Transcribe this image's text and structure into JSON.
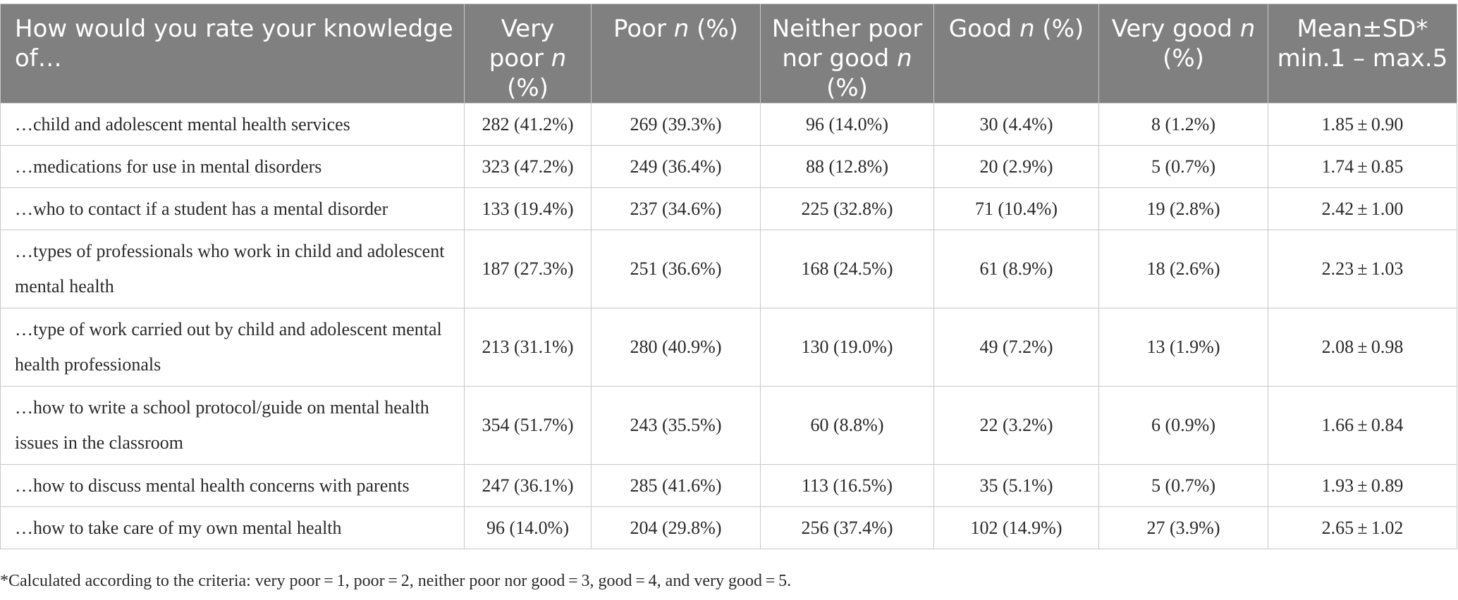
{
  "table": {
    "headers": [
      {
        "pre": "How would you rate your knowledge of…",
        "it": "",
        "post": ""
      },
      {
        "pre": "Very poor ",
        "it": "n",
        "post": " (%)"
      },
      {
        "pre": "Poor ",
        "it": "n",
        "post": " (%)"
      },
      {
        "pre": "Neither poor nor good ",
        "it": "n",
        "post": " (%)"
      },
      {
        "pre": "Good ",
        "it": "n",
        "post": " (%)"
      },
      {
        "pre": "Very good ",
        "it": "n",
        "post": " (%)"
      },
      {
        "pre": "Mean±SD* min.1 – max.5",
        "it": "",
        "post": ""
      }
    ],
    "rows": [
      {
        "item": "…child and adolescent mental health services",
        "very_poor": "282 (41.2%)",
        "poor": "269 (39.3%)",
        "neither": "96 (14.0%)",
        "good": "30 (4.4%)",
        "very_good": "8 (1.2%)",
        "mean_sd": "1.85 ± 0.90"
      },
      {
        "item": "…medications for use in mental disorders",
        "very_poor": "323 (47.2%)",
        "poor": "249 (36.4%)",
        "neither": "88 (12.8%)",
        "good": "20 (2.9%)",
        "very_good": "5 (0.7%)",
        "mean_sd": "1.74 ± 0.85"
      },
      {
        "item": "…who to contact if a student has a mental disorder",
        "very_poor": "133 (19.4%)",
        "poor": "237 (34.6%)",
        "neither": "225 (32.8%)",
        "good": "71 (10.4%)",
        "very_good": "19 (2.8%)",
        "mean_sd": "2.42 ± 1.00"
      },
      {
        "item": "…types of professionals who work in child and adolescent mental health",
        "very_poor": "187 (27.3%)",
        "poor": "251 (36.6%)",
        "neither": "168 (24.5%)",
        "good": "61 (8.9%)",
        "very_good": "18 (2.6%)",
        "mean_sd": "2.23 ± 1.03"
      },
      {
        "item": "…type of work carried out by child and adolescent mental health professionals",
        "very_poor": "213 (31.1%)",
        "poor": "280 (40.9%)",
        "neither": "130 (19.0%)",
        "good": "49 (7.2%)",
        "very_good": "13 (1.9%)",
        "mean_sd": "2.08 ± 0.98"
      },
      {
        "item": "…how to write a school protocol/guide on mental health issues in the classroom",
        "very_poor": "354 (51.7%)",
        "poor": "243 (35.5%)",
        "neither": "60 (8.8%)",
        "good": "22 (3.2%)",
        "very_good": "6 (0.9%)",
        "mean_sd": "1.66 ± 0.84"
      },
      {
        "item": "…how to discuss mental health concerns with parents",
        "very_poor": "247 (36.1%)",
        "poor": "285 (41.6%)",
        "neither": "113 (16.5%)",
        "good": "35 (5.1%)",
        "very_good": "5 (0.7%)",
        "mean_sd": "1.93 ± 0.89"
      },
      {
        "item": "…how to take care of my own mental health",
        "very_poor": "96 (14.0%)",
        "poor": "204 (29.8%)",
        "neither": "256 (37.4%)",
        "good": "102 (14.9%)",
        "very_good": "27 (3.9%)",
        "mean_sd": "2.65 ± 1.02"
      }
    ]
  },
  "footnote": "*Calculated according to the criteria: very poor = 1, poor = 2, neither poor nor good = 3, good = 4, and very good = 5."
}
